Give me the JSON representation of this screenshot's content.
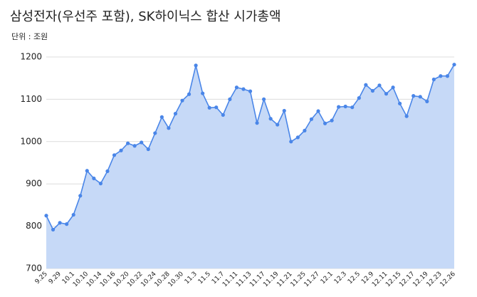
{
  "chart_data": {
    "type": "area",
    "title": "삼성전자(우선주 포함), SK하이닉스 합산 시가총액",
    "subtitle": "단위 : 조원",
    "categories": [
      "9.25",
      null,
      "9.29",
      null,
      "10.1",
      null,
      "10.10",
      null,
      "10.14",
      null,
      "10.16",
      null,
      "10.20",
      null,
      "10.22",
      null,
      "10.24",
      null,
      "10.28",
      null,
      "10.30",
      null,
      "11.3",
      null,
      "11.5",
      null,
      "11.7",
      null,
      "11.11",
      null,
      "11.13",
      null,
      "11.17",
      null,
      "11.19",
      null,
      "11.21",
      null,
      "11.25",
      null,
      "11.27",
      null,
      "12.1",
      null,
      "12.3",
      null,
      "12.5",
      null,
      "12.9",
      null,
      "12.11",
      null,
      "12.15",
      null,
      "12.17",
      null,
      "12.19",
      null,
      "12.23",
      null,
      "12.26"
    ],
    "values": [
      825,
      792,
      808,
      805,
      827,
      872,
      931,
      913,
      901,
      930,
      968,
      979,
      996,
      990,
      998,
      982,
      1020,
      1058,
      1032,
      1066,
      1097,
      1112,
      1180,
      1114,
      1080,
      1081,
      1063,
      1100,
      1128,
      1124,
      1119,
      1044,
      1100,
      1054,
      1040,
      1073,
      1000,
      1010,
      1026,
      1053,
      1072,
      1043,
      1050,
      1082,
      1083,
      1081,
      1103,
      1134,
      1120,
      1133,
      1113,
      1128,
      1090,
      1060,
      1108,
      1106,
      1095,
      1147,
      1155,
      1155,
      1182
    ],
    "color": "#4a86e8",
    "fill_color": "#c6d9f7",
    "ylim": [
      700,
      1200
    ],
    "yticks": [
      700,
      800,
      900,
      1000,
      1100,
      1200
    ],
    "grid": true
  }
}
